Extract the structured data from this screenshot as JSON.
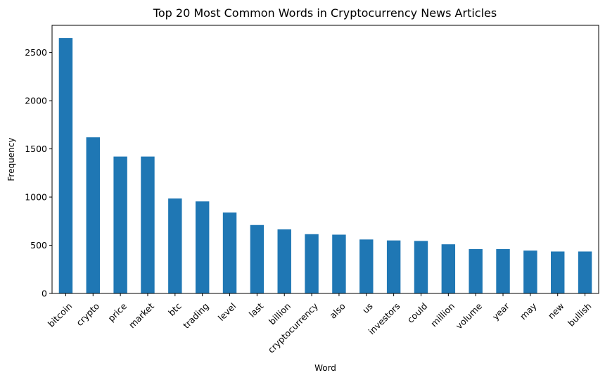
{
  "chart_data": {
    "type": "bar",
    "title": "Top 20 Most Common Words in Cryptocurrency News Articles",
    "xlabel": "Word",
    "ylabel": "Frequency",
    "categories": [
      "bitcoin",
      "crypto",
      "price",
      "market",
      "btc",
      "trading",
      "level",
      "last",
      "billion",
      "cryptocurrency",
      "also",
      "us",
      "investors",
      "could",
      "million",
      "volume",
      "year",
      "may",
      "new",
      "bullish"
    ],
    "values": [
      2650,
      1620,
      1420,
      1420,
      985,
      955,
      840,
      710,
      665,
      615,
      610,
      560,
      550,
      545,
      510,
      460,
      460,
      445,
      435,
      435
    ],
    "ylim": [
      0,
      2782
    ],
    "yticks": [
      0,
      500,
      1000,
      1500,
      2000,
      2500
    ],
    "bar_color": "#1f77b4",
    "grid": false
  }
}
